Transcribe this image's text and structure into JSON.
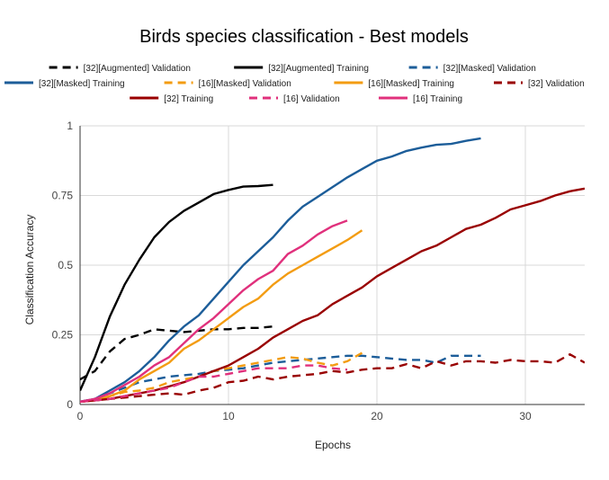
{
  "chart_data": {
    "type": "line",
    "title": "Birds species classification - Best models",
    "xlabel": "Epochs",
    "ylabel": "Classification Accuracy",
    "xlim": [
      0,
      34
    ],
    "ylim": [
      0,
      1
    ],
    "x_ticks": [
      0,
      10,
      20,
      30
    ],
    "y_ticks": [
      0,
      0.25,
      0.5,
      0.75,
      1
    ],
    "x_tick_labels": [
      "0",
      "10",
      "20",
      "30"
    ],
    "y_tick_labels": [
      "0",
      "0.25",
      "0.5",
      "0.75",
      "1"
    ],
    "grid": true,
    "legend_position": "top",
    "series": [
      {
        "name": "[32][Augmented] Validation",
        "color": "#000000",
        "dashed": true,
        "x": [
          0,
          1,
          2,
          3,
          4,
          5,
          6,
          7,
          8,
          9,
          10,
          11,
          12,
          13
        ],
        "y": [
          0.09,
          0.12,
          0.19,
          0.235,
          0.25,
          0.27,
          0.265,
          0.26,
          0.265,
          0.27,
          0.27,
          0.275,
          0.275,
          0.28
        ]
      },
      {
        "name": "[32][Augmented] Training",
        "color": "#000000",
        "dashed": false,
        "x": [
          0,
          1,
          2,
          3,
          4,
          5,
          6,
          7,
          8,
          9,
          10,
          11,
          12,
          13
        ],
        "y": [
          0.05,
          0.17,
          0.315,
          0.43,
          0.52,
          0.6,
          0.655,
          0.695,
          0.725,
          0.755,
          0.77,
          0.782,
          0.784,
          0.788
        ]
      },
      {
        "name": "[32][Masked] Validation",
        "color": "#1c5d99",
        "dashed": true,
        "x": [
          0,
          1,
          2,
          3,
          4,
          5,
          6,
          7,
          8,
          9,
          10,
          11,
          12,
          13,
          14,
          15,
          16,
          17,
          18,
          19,
          20,
          21,
          22,
          23,
          24,
          25,
          26,
          27
        ],
        "y": [
          0.01,
          0.02,
          0.04,
          0.06,
          0.08,
          0.09,
          0.1,
          0.105,
          0.11,
          0.12,
          0.125,
          0.13,
          0.14,
          0.15,
          0.155,
          0.16,
          0.165,
          0.17,
          0.175,
          0.175,
          0.17,
          0.165,
          0.16,
          0.16,
          0.15,
          0.175,
          0.175,
          0.175
        ]
      },
      {
        "name": "[32][Masked] Training",
        "color": "#1c5d99",
        "dashed": false,
        "x": [
          0,
          1,
          2,
          3,
          4,
          5,
          6,
          7,
          8,
          9,
          10,
          11,
          12,
          13,
          14,
          15,
          16,
          17,
          18,
          19,
          20,
          21,
          22,
          23,
          24,
          25,
          26,
          27
        ],
        "y": [
          0.01,
          0.02,
          0.05,
          0.08,
          0.12,
          0.17,
          0.23,
          0.28,
          0.32,
          0.38,
          0.44,
          0.5,
          0.55,
          0.6,
          0.66,
          0.71,
          0.745,
          0.78,
          0.815,
          0.845,
          0.875,
          0.89,
          0.91,
          0.922,
          0.932,
          0.935,
          0.946,
          0.955
        ]
      },
      {
        "name": "[16][Masked] Validation",
        "color": "#f39c12",
        "dashed": true,
        "x": [
          0,
          1,
          2,
          3,
          4,
          5,
          6,
          7,
          8,
          9,
          10,
          11,
          12,
          13,
          14,
          15,
          16,
          17,
          18,
          19
        ],
        "y": [
          0.01,
          0.015,
          0.03,
          0.045,
          0.05,
          0.06,
          0.08,
          0.09,
          0.1,
          0.12,
          0.13,
          0.14,
          0.15,
          0.16,
          0.17,
          0.165,
          0.15,
          0.14,
          0.155,
          0.185
        ]
      },
      {
        "name": "[16][Masked] Training",
        "color": "#f39c12",
        "dashed": false,
        "x": [
          0,
          1,
          2,
          3,
          4,
          5,
          6,
          7,
          8,
          9,
          10,
          11,
          12,
          13,
          14,
          15,
          16,
          17,
          18,
          19
        ],
        "y": [
          0.01,
          0.015,
          0.03,
          0.05,
          0.09,
          0.12,
          0.15,
          0.2,
          0.23,
          0.27,
          0.31,
          0.35,
          0.38,
          0.43,
          0.47,
          0.5,
          0.53,
          0.56,
          0.59,
          0.625
        ]
      },
      {
        "name": "[32] Validation",
        "color": "#990000",
        "dashed": true,
        "x": [
          0,
          1,
          2,
          3,
          4,
          5,
          6,
          7,
          8,
          9,
          10,
          11,
          12,
          13,
          14,
          15,
          16,
          17,
          18,
          19,
          20,
          21,
          22,
          23,
          24,
          25,
          26,
          27,
          28,
          29,
          30,
          31,
          32,
          33,
          34
        ],
        "y": [
          0.01,
          0.015,
          0.02,
          0.025,
          0.03,
          0.035,
          0.04,
          0.035,
          0.05,
          0.06,
          0.08,
          0.085,
          0.1,
          0.09,
          0.1,
          0.105,
          0.11,
          0.12,
          0.115,
          0.125,
          0.13,
          0.13,
          0.145,
          0.13,
          0.155,
          0.14,
          0.155,
          0.155,
          0.15,
          0.16,
          0.155,
          0.155,
          0.15,
          0.18,
          0.15
        ]
      },
      {
        "name": "[32] Training",
        "color": "#990000",
        "dashed": false,
        "x": [
          0,
          1,
          2,
          3,
          4,
          5,
          6,
          7,
          8,
          9,
          10,
          11,
          12,
          13,
          14,
          15,
          16,
          17,
          18,
          19,
          20,
          21,
          22,
          23,
          24,
          25,
          26,
          27,
          28,
          29,
          30,
          31,
          32,
          33,
          34
        ],
        "y": [
          0.01,
          0.015,
          0.02,
          0.03,
          0.04,
          0.05,
          0.065,
          0.08,
          0.1,
          0.12,
          0.14,
          0.17,
          0.2,
          0.24,
          0.27,
          0.3,
          0.32,
          0.36,
          0.39,
          0.42,
          0.46,
          0.49,
          0.52,
          0.55,
          0.57,
          0.6,
          0.63,
          0.645,
          0.67,
          0.7,
          0.715,
          0.73,
          0.75,
          0.765,
          0.775
        ]
      },
      {
        "name": "[16] Validation",
        "color": "#e0307c",
        "dashed": true,
        "x": [
          0,
          1,
          2,
          3,
          4,
          5,
          6,
          7,
          8,
          9,
          10,
          11,
          12,
          13,
          14,
          15,
          16,
          17,
          18
        ],
        "y": [
          0.01,
          0.015,
          0.02,
          0.03,
          0.04,
          0.05,
          0.06,
          0.08,
          0.1,
          0.1,
          0.11,
          0.12,
          0.13,
          0.13,
          0.13,
          0.14,
          0.14,
          0.13,
          0.125
        ]
      },
      {
        "name": "[16] Training",
        "color": "#e0307c",
        "dashed": false,
        "x": [
          0,
          1,
          2,
          3,
          4,
          5,
          6,
          7,
          8,
          9,
          10,
          11,
          12,
          13,
          14,
          15,
          16,
          17,
          18
        ],
        "y": [
          0.01,
          0.02,
          0.04,
          0.07,
          0.1,
          0.14,
          0.17,
          0.22,
          0.27,
          0.31,
          0.36,
          0.41,
          0.45,
          0.48,
          0.54,
          0.57,
          0.61,
          0.64,
          0.66
        ]
      }
    ]
  }
}
